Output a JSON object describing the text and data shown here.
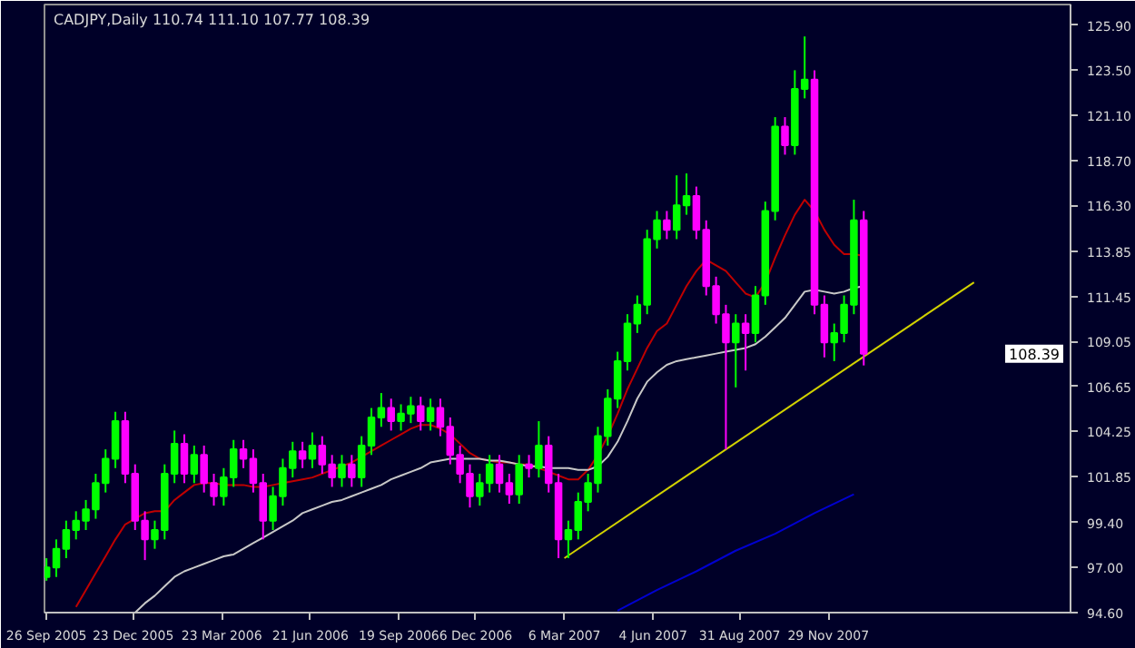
{
  "chart_data": {
    "type": "candlestick",
    "title": "CADJPY,Daily  110.74 111.10 107.77 108.39",
    "x": [
      "2005-09-26",
      "2005-10-06",
      "2005-10-16",
      "2005-10-26",
      "2005-11-05",
      "2005-11-15",
      "2005-11-25",
      "2005-12-05",
      "2005-12-15",
      "2005-12-25",
      "2006-01-04",
      "2006-01-14",
      "2006-01-24",
      "2006-02-03",
      "2006-02-13",
      "2006-02-23",
      "2006-03-05",
      "2006-03-15",
      "2006-03-25",
      "2006-04-04",
      "2006-04-14",
      "2006-04-24",
      "2006-05-04",
      "2006-05-14",
      "2006-05-24",
      "2006-06-03",
      "2006-06-13",
      "2006-06-23",
      "2006-07-03",
      "2006-07-13",
      "2006-07-23",
      "2006-08-02",
      "2006-08-12",
      "2006-08-22",
      "2006-09-01",
      "2006-09-11",
      "2006-09-21",
      "2006-10-01",
      "2006-10-11",
      "2006-10-21",
      "2006-10-31",
      "2006-11-10",
      "2006-11-20",
      "2006-11-30",
      "2006-12-10",
      "2006-12-20",
      "2006-12-30",
      "2007-01-09",
      "2007-01-19",
      "2007-01-29",
      "2007-02-08",
      "2007-02-18",
      "2007-02-28",
      "2007-03-10",
      "2007-03-20",
      "2007-03-30",
      "2007-04-09",
      "2007-04-19",
      "2007-04-29",
      "2007-05-09",
      "2007-05-19",
      "2007-05-29",
      "2007-06-08",
      "2007-06-18",
      "2007-06-28",
      "2007-07-08",
      "2007-07-18",
      "2007-07-28",
      "2007-08-07",
      "2007-08-17",
      "2007-08-27",
      "2007-09-06",
      "2007-09-16",
      "2007-09-26",
      "2007-10-06",
      "2007-10-16",
      "2007-10-26",
      "2007-11-05",
      "2007-11-15",
      "2007-11-25",
      "2007-12-05",
      "2007-12-15",
      "2007-12-25",
      "2008-01-04"
    ],
    "ohlc": [
      [
        96.5,
        97.5,
        96.3,
        97.0
      ],
      [
        97.0,
        98.5,
        96.5,
        98.0
      ],
      [
        98.0,
        99.5,
        97.5,
        99.0
      ],
      [
        99.0,
        100.0,
        98.5,
        99.5
      ],
      [
        99.5,
        100.6,
        99.0,
        100.1
      ],
      [
        100.1,
        102.0,
        99.6,
        101.5
      ],
      [
        101.5,
        103.3,
        101.0,
        102.8
      ],
      [
        102.8,
        105.3,
        102.3,
        104.8
      ],
      [
        104.8,
        105.3,
        101.5,
        102.0
      ],
      [
        102.0,
        102.5,
        99.0,
        99.5
      ],
      [
        99.5,
        100.0,
        97.4,
        98.5
      ],
      [
        98.5,
        99.5,
        98.0,
        99.0
      ],
      [
        99.0,
        102.5,
        98.5,
        102.0
      ],
      [
        102.0,
        104.3,
        101.5,
        103.6
      ],
      [
        103.6,
        104.1,
        101.5,
        102.0
      ],
      [
        102.0,
        103.5,
        101.5,
        103.0
      ],
      [
        103.0,
        103.5,
        101.0,
        101.5
      ],
      [
        101.5,
        102.0,
        100.3,
        100.8
      ],
      [
        100.8,
        102.3,
        100.3,
        101.8
      ],
      [
        101.8,
        103.8,
        101.3,
        103.3
      ],
      [
        103.3,
        103.8,
        102.3,
        102.8
      ],
      [
        102.8,
        103.3,
        101.0,
        101.5
      ],
      [
        101.5,
        102.0,
        98.5,
        99.5
      ],
      [
        99.5,
        101.3,
        99.0,
        100.8
      ],
      [
        100.8,
        102.8,
        100.3,
        102.3
      ],
      [
        102.3,
        103.7,
        101.8,
        103.2
      ],
      [
        103.2,
        103.7,
        102.3,
        102.8
      ],
      [
        102.8,
        104.2,
        102.3,
        103.5
      ],
      [
        103.5,
        104.0,
        102.0,
        102.5
      ],
      [
        102.5,
        103.0,
        101.3,
        101.8
      ],
      [
        101.8,
        103.0,
        101.3,
        102.5
      ],
      [
        102.5,
        103.0,
        101.3,
        101.8
      ],
      [
        101.8,
        104.0,
        101.3,
        103.5
      ],
      [
        103.5,
        105.5,
        103.0,
        105.0
      ],
      [
        105.0,
        106.3,
        104.5,
        105.5
      ],
      [
        105.5,
        106.0,
        104.3,
        104.8
      ],
      [
        104.8,
        105.7,
        104.3,
        105.2
      ],
      [
        105.2,
        106.1,
        104.7,
        105.6
      ],
      [
        105.6,
        106.1,
        104.3,
        104.8
      ],
      [
        104.8,
        106.0,
        104.3,
        105.5
      ],
      [
        105.5,
        106.0,
        104.0,
        104.5
      ],
      [
        104.5,
        105.0,
        102.5,
        103.0
      ],
      [
        103.0,
        103.5,
        101.5,
        102.0
      ],
      [
        102.0,
        102.5,
        100.2,
        100.8
      ],
      [
        100.8,
        102.0,
        100.3,
        101.5
      ],
      [
        101.5,
        103.0,
        101.0,
        102.5
      ],
      [
        102.5,
        103.0,
        101.0,
        101.5
      ],
      [
        101.5,
        102.0,
        100.4,
        100.9
      ],
      [
        100.9,
        103.0,
        100.4,
        102.5
      ],
      [
        102.5,
        103.0,
        101.8,
        102.3
      ],
      [
        102.3,
        104.8,
        101.8,
        103.5
      ],
      [
        103.5,
        104.0,
        101.0,
        101.5
      ],
      [
        101.5,
        102.0,
        97.5,
        98.5
      ],
      [
        98.5,
        99.5,
        97.5,
        99.0
      ],
      [
        99.0,
        101.0,
        98.5,
        100.5
      ],
      [
        100.5,
        102.0,
        100.0,
        101.5
      ],
      [
        101.5,
        104.5,
        101.0,
        104.0
      ],
      [
        104.0,
        106.5,
        103.5,
        106.0
      ],
      [
        106.0,
        108.5,
        105.5,
        108.0
      ],
      [
        108.0,
        110.5,
        107.5,
        110.0
      ],
      [
        110.0,
        111.5,
        109.5,
        111.0
      ],
      [
        111.0,
        115.0,
        110.5,
        114.5
      ],
      [
        114.5,
        116.0,
        114.0,
        115.5
      ],
      [
        115.5,
        116.0,
        114.5,
        115.0
      ],
      [
        115.0,
        117.9,
        114.5,
        116.3
      ],
      [
        116.3,
        118.0,
        115.8,
        116.8
      ],
      [
        116.8,
        117.3,
        114.5,
        115.0
      ],
      [
        115.0,
        115.5,
        111.5,
        112.0
      ],
      [
        112.0,
        112.5,
        110.0,
        110.5
      ],
      [
        110.5,
        111.0,
        103.3,
        109.0
      ],
      [
        109.0,
        110.5,
        106.6,
        110.0
      ],
      [
        110.0,
        110.5,
        107.5,
        109.5
      ],
      [
        109.5,
        112.0,
        109.0,
        111.5
      ],
      [
        111.5,
        116.5,
        111.0,
        116.0
      ],
      [
        116.0,
        121.0,
        115.5,
        120.5
      ],
      [
        120.5,
        121.0,
        119.0,
        119.5
      ],
      [
        119.5,
        123.5,
        119.0,
        122.5
      ],
      [
        122.5,
        125.3,
        122.0,
        123.0
      ],
      [
        123.0,
        123.5,
        110.5,
        111.0
      ],
      [
        111.0,
        111.5,
        108.2,
        109.0
      ],
      [
        109.0,
        110.0,
        108.0,
        109.5
      ],
      [
        109.5,
        111.5,
        109.0,
        111.0
      ],
      [
        111.0,
        116.6,
        110.5,
        115.5
      ],
      [
        115.5,
        116.0,
        107.77,
        108.39
      ]
    ],
    "colors": [
      "#00ff00",
      "#00ff00",
      "#00ff00",
      "#00ff00",
      "#00ff00",
      "#00ff00",
      "#00ff00",
      "#00ff00",
      "#ff00ff",
      "#ff00ff",
      "#ff00ff",
      "#00ff00",
      "#00ff00",
      "#00ff00",
      "#ff00ff",
      "#00ff00",
      "#ff00ff",
      "#ff00ff",
      "#00ff00",
      "#00ff00",
      "#ff00ff",
      "#ff00ff",
      "#ff00ff",
      "#00ff00",
      "#00ff00",
      "#00ff00",
      "#ff00ff",
      "#00ff00",
      "#ff00ff",
      "#ff00ff",
      "#00ff00",
      "#ff00ff",
      "#00ff00",
      "#00ff00",
      "#00ff00",
      "#ff00ff",
      "#00ff00",
      "#00ff00",
      "#ff00ff",
      "#00ff00",
      "#ff00ff",
      "#ff00ff",
      "#ff00ff",
      "#ff00ff",
      "#00ff00",
      "#00ff00",
      "#ff00ff",
      "#ff00ff",
      "#00ff00",
      "#ff00ff",
      "#00ff00",
      "#ff00ff",
      "#ff00ff",
      "#00ff00",
      "#00ff00",
      "#00ff00",
      "#00ff00",
      "#00ff00",
      "#00ff00",
      "#00ff00",
      "#00ff00",
      "#00ff00",
      "#00ff00",
      "#ff00ff",
      "#00ff00",
      "#00ff00",
      "#ff00ff",
      "#ff00ff",
      "#ff00ff",
      "#ff00ff",
      "#00ff00",
      "#ff00ff",
      "#00ff00",
      "#00ff00",
      "#00ff00",
      "#ff00ff",
      "#00ff00",
      "#00ff00",
      "#ff00ff",
      "#ff00ff",
      "#00ff00",
      "#00ff00",
      "#00ff00",
      "#ff00ff"
    ],
    "series": [
      {
        "type": "line",
        "color": "#c00000",
        "values": [
          null,
          null,
          null,
          94.9,
          95.8,
          96.7,
          97.6,
          98.5,
          99.3,
          99.6,
          99.9,
          100.0,
          100.0,
          100.6,
          101.0,
          101.4,
          101.5,
          101.5,
          101.4,
          101.4,
          101.4,
          101.3,
          101.3,
          101.4,
          101.5,
          101.6,
          101.7,
          101.8,
          102.0,
          102.2,
          102.4,
          102.6,
          102.9,
          103.2,
          103.5,
          103.8,
          104.1,
          104.4,
          104.6,
          104.6,
          104.4,
          104.1,
          103.6,
          103.1,
          102.8,
          102.7,
          102.6,
          102.6,
          102.5,
          102.5,
          102.3,
          102.1,
          101.9,
          101.7,
          101.7,
          102.2,
          103.0,
          104.0,
          105.2,
          106.5,
          107.6,
          108.7,
          109.6,
          110.0,
          111.0,
          112.0,
          112.8,
          113.4,
          113.1,
          112.8,
          112.2,
          111.6,
          111.4,
          112.2,
          113.5,
          114.7,
          115.8,
          116.6,
          116.0,
          115.0,
          114.2,
          113.7,
          113.7,
          113.6
        ]
      },
      {
        "type": "line",
        "color": "#c8c8c8",
        "values": [
          null,
          null,
          null,
          null,
          null,
          null,
          null,
          null,
          null,
          94.6,
          95.1,
          95.5,
          96.0,
          96.5,
          96.8,
          97.0,
          97.2,
          97.4,
          97.6,
          97.7,
          98.0,
          98.3,
          98.6,
          98.9,
          99.2,
          99.5,
          99.9,
          100.1,
          100.3,
          100.5,
          100.6,
          100.8,
          101.0,
          101.2,
          101.4,
          101.7,
          101.9,
          102.1,
          102.3,
          102.6,
          102.7,
          102.8,
          102.8,
          102.8,
          102.8,
          102.7,
          102.7,
          102.6,
          102.5,
          102.4,
          102.4,
          102.3,
          102.3,
          102.3,
          102.2,
          102.2,
          102.4,
          102.9,
          103.7,
          104.8,
          106.0,
          106.9,
          107.4,
          107.8,
          108.0,
          108.1,
          108.2,
          108.3,
          108.4,
          108.5,
          108.6,
          108.7,
          108.9,
          109.3,
          109.8,
          110.3,
          111.0,
          111.7,
          111.8,
          111.7,
          111.6,
          111.7,
          111.9,
          112.0
        ]
      },
      {
        "type": "line",
        "color": "#0000d0",
        "x": [
          "2007-04-29",
          "2007-06-08",
          "2007-07-18",
          "2007-08-27",
          "2007-10-06",
          "2007-11-15",
          "2007-12-25"
        ],
        "values": [
          94.7,
          95.8,
          96.8,
          97.9,
          98.8,
          99.9,
          100.9
        ]
      },
      {
        "type": "line",
        "color": "#d2d200",
        "x": [
          "2007-03-06",
          "2008-04-25"
        ],
        "values": [
          97.5,
          112.2
        ]
      }
    ],
    "annotations": [
      "108.39"
    ],
    "xlim": [
      "2005-09-24",
      "2008-08-01"
    ],
    "xticks": [
      {
        "value": "2005-09-26",
        "label": "26 Sep 2005"
      },
      {
        "value": "2005-12-23",
        "label": "23 Dec 2005"
      },
      {
        "value": "2006-03-23",
        "label": "23 Mar 2006"
      },
      {
        "value": "2006-06-21",
        "label": "21 Jun 2006"
      },
      {
        "value": "2006-09-19",
        "label": "19 Sep 2006"
      },
      {
        "value": "2006-12-06",
        "label": "6 Dec 2006"
      },
      {
        "value": "2007-03-06",
        "label": "6 Mar 2007"
      },
      {
        "value": "2007-06-04",
        "label": "4 Jun 2007"
      },
      {
        "value": "2007-08-31",
        "label": "31 Aug 2007"
      },
      {
        "value": "2007-11-29",
        "label": "29 Nov 2007"
      }
    ],
    "ylim": [
      94.6,
      127.0
    ],
    "yticks": [
      {
        "value": 94.6,
        "label": "94.60"
      },
      {
        "value": 97.0,
        "label": "97.00"
      },
      {
        "value": 99.4,
        "label": "99.40"
      },
      101.85,
      104.25,
      106.65,
      109.05,
      111.45,
      113.85,
      {
        "value": 116.3,
        "label": "116.30"
      },
      {
        "value": 118.7,
        "label": "118.70"
      },
      {
        "value": 121.1,
        "label": "121.10"
      },
      {
        "value": 123.5,
        "label": "123.50"
      },
      {
        "value": 125.9,
        "label": "125.90"
      }
    ],
    "grid": false
  }
}
